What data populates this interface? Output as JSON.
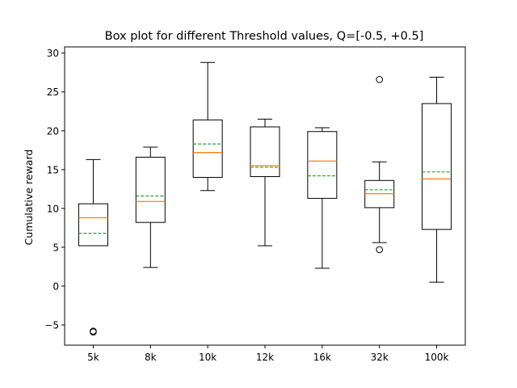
{
  "chart_data": {
    "type": "boxplot",
    "title": "Box plot for different Threshold values, Q=[-0.5, +0.5]",
    "xlabel": "",
    "ylabel": "Cumulative reward",
    "ylim": [
      -7.6,
      30.8
    ],
    "yticks": [
      -5,
      0,
      5,
      10,
      15,
      20,
      25,
      30
    ],
    "grid": false,
    "categories": [
      "5k",
      "8k",
      "10k",
      "12k",
      "16k",
      "32k",
      "100k"
    ],
    "boxes": [
      {
        "label": "5k",
        "whislo": 5.2,
        "q1": 5.2,
        "med": 8.8,
        "mean": 6.8,
        "q3": 10.6,
        "whishi": 16.3,
        "fliers": [
          -5.8,
          -5.9
        ]
      },
      {
        "label": "8k",
        "whislo": 2.4,
        "q1": 8.2,
        "med": 10.9,
        "mean": 11.6,
        "q3": 16.6,
        "whishi": 17.9,
        "fliers": []
      },
      {
        "label": "10k",
        "whislo": 12.3,
        "q1": 14.0,
        "med": 17.2,
        "mean": 18.3,
        "q3": 21.4,
        "whishi": 28.8,
        "fliers": []
      },
      {
        "label": "12k",
        "whislo": 5.2,
        "q1": 14.1,
        "med": 15.5,
        "mean": 15.3,
        "q3": 20.5,
        "whishi": 21.5,
        "fliers": []
      },
      {
        "label": "16k",
        "whislo": 2.3,
        "q1": 11.3,
        "med": 16.1,
        "mean": 14.2,
        "q3": 19.9,
        "whishi": 20.4,
        "fliers": []
      },
      {
        "label": "32k",
        "whislo": 5.6,
        "q1": 10.1,
        "med": 11.9,
        "mean": 12.4,
        "q3": 13.6,
        "whishi": 16.0,
        "fliers": [
          26.6,
          4.7
        ]
      },
      {
        "label": "100k",
        "whislo": 0.5,
        "q1": 7.3,
        "med": 13.8,
        "mean": 14.7,
        "q3": 23.5,
        "whishi": 26.9,
        "fliers": []
      }
    ],
    "colors": {
      "box": "#000000",
      "median": "#ff7f0e",
      "mean": "#2ca02c",
      "flier": "#000000"
    }
  }
}
